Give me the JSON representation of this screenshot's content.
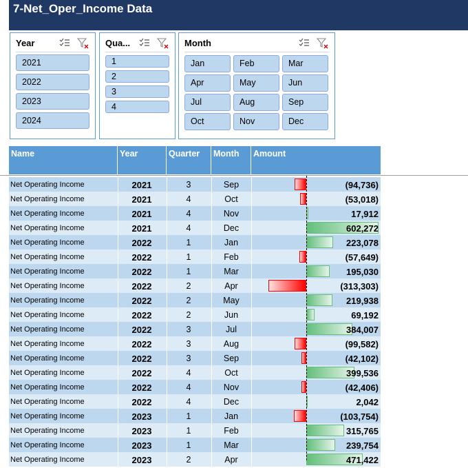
{
  "title": "7-Net_Oper_Income Data",
  "colors": {
    "title_bg": "#1f3864",
    "header_bg": "#5b9bd5",
    "slicer_item": "#bdd7ee",
    "positive_bar": "#63be7b",
    "negative_bar": "#ff0000"
  },
  "slicers": {
    "year": {
      "title": "Year",
      "items": [
        "2021",
        "2022",
        "2023",
        "2024"
      ]
    },
    "quarter": {
      "title": "Qua...",
      "items": [
        "1",
        "2",
        "3",
        "4"
      ]
    },
    "month": {
      "title": "Month",
      "items": [
        "Jan",
        "Feb",
        "Mar",
        "Apr",
        "May",
        "Jun",
        "Jul",
        "Aug",
        "Sep",
        "Oct",
        "Nov",
        "Dec"
      ]
    },
    "icons": [
      "multi-select-icon",
      "clear-filter-icon"
    ]
  },
  "table": {
    "headers": {
      "name": "Name",
      "year": "Year",
      "quarter": "Quarter",
      "month": "Month",
      "amount": "Amount"
    },
    "rows": [
      {
        "name": "Net Operating Income",
        "year": "2021",
        "quarter": "3",
        "month": "Sep",
        "amount": "(94,736)",
        "value": -94736
      },
      {
        "name": "Net Operating Income",
        "year": "2021",
        "quarter": "4",
        "month": "Oct",
        "amount": "(53,018)",
        "value": -53018
      },
      {
        "name": "Net Operating Income",
        "year": "2021",
        "quarter": "4",
        "month": "Nov",
        "amount": "17,912",
        "value": 17912
      },
      {
        "name": "Net Operating Income",
        "year": "2021",
        "quarter": "4",
        "month": "Dec",
        "amount": "602,272",
        "value": 602272
      },
      {
        "name": "Net Operating Income",
        "year": "2022",
        "quarter": "1",
        "month": "Jan",
        "amount": "223,078",
        "value": 223078
      },
      {
        "name": "Net Operating Income",
        "year": "2022",
        "quarter": "1",
        "month": "Feb",
        "amount": "(57,649)",
        "value": -57649
      },
      {
        "name": "Net Operating Income",
        "year": "2022",
        "quarter": "1",
        "month": "Mar",
        "amount": "195,030",
        "value": 195030
      },
      {
        "name": "Net Operating Income",
        "year": "2022",
        "quarter": "2",
        "month": "Apr",
        "amount": "(313,303)",
        "value": -313303
      },
      {
        "name": "Net Operating Income",
        "year": "2022",
        "quarter": "2",
        "month": "May",
        "amount": "219,938",
        "value": 219938
      },
      {
        "name": "Net Operating Income",
        "year": "2022",
        "quarter": "2",
        "month": "Jun",
        "amount": "69,192",
        "value": 69192
      },
      {
        "name": "Net Operating Income",
        "year": "2022",
        "quarter": "3",
        "month": "Jul",
        "amount": "384,007",
        "value": 384007
      },
      {
        "name": "Net Operating Income",
        "year": "2022",
        "quarter": "3",
        "month": "Aug",
        "amount": "(99,582)",
        "value": -99582
      },
      {
        "name": "Net Operating Income",
        "year": "2022",
        "quarter": "3",
        "month": "Sep",
        "amount": "(42,102)",
        "value": -42102
      },
      {
        "name": "Net Operating Income",
        "year": "2022",
        "quarter": "4",
        "month": "Oct",
        "amount": "399,536",
        "value": 399536
      },
      {
        "name": "Net Operating Income",
        "year": "2022",
        "quarter": "4",
        "month": "Nov",
        "amount": "(42,406)",
        "value": -42406
      },
      {
        "name": "Net Operating Income",
        "year": "2022",
        "quarter": "4",
        "month": "Dec",
        "amount": "2,042",
        "value": 2042
      },
      {
        "name": "Net Operating Income",
        "year": "2023",
        "quarter": "1",
        "month": "Jan",
        "amount": "(103,754)",
        "value": -103754
      },
      {
        "name": "Net Operating Income",
        "year": "2023",
        "quarter": "1",
        "month": "Feb",
        "amount": "315,765",
        "value": 315765
      },
      {
        "name": "Net Operating Income",
        "year": "2023",
        "quarter": "1",
        "month": "Mar",
        "amount": "239,754",
        "value": 239754
      },
      {
        "name": "Net Operating Income",
        "year": "2023",
        "quarter": "2",
        "month": "Apr",
        "amount": "471,422",
        "value": 471422
      }
    ]
  }
}
